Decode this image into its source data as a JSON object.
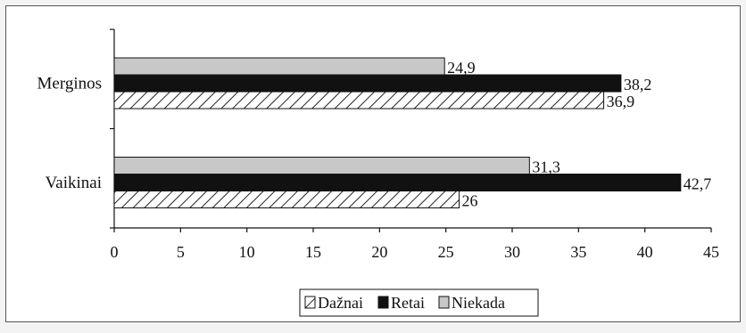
{
  "chart_data": {
    "type": "bar",
    "orientation": "horizontal",
    "categories": [
      "Merginos",
      "Vaikinai"
    ],
    "series": [
      {
        "name": "Niekada",
        "values": [
          24.9,
          31.3
        ],
        "fill": "#c8c8c8",
        "labels": [
          "24,9",
          "31,3"
        ]
      },
      {
        "name": "Retai",
        "values": [
          38.2,
          42.7
        ],
        "fill": "#111111",
        "labels": [
          "38,2",
          "42,7"
        ]
      },
      {
        "name": "Dažnai",
        "values": [
          36.9,
          26
        ],
        "fill": "hatched",
        "labels": [
          "36,9",
          "26"
        ]
      }
    ],
    "xlim": [
      0,
      45
    ],
    "xticks": [
      "0",
      "5",
      "10",
      "15",
      "20",
      "25",
      "30",
      "35",
      "40",
      "45"
    ],
    "grid": false,
    "legend": {
      "placement": "bottom-center",
      "order": [
        "Dažnai",
        "Retai",
        "Niekada"
      ]
    }
  }
}
